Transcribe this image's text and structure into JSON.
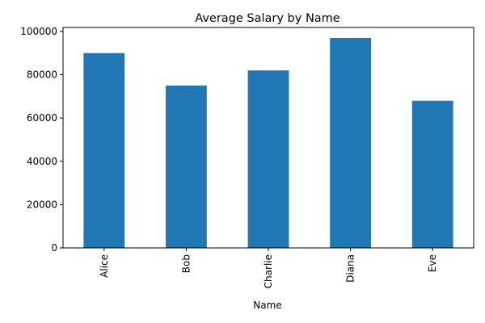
{
  "chart_data": {
    "type": "bar",
    "title": "Average Salary by Name",
    "xlabel": "Name",
    "ylabel": "",
    "categories": [
      "Alice",
      "Bob",
      "Charlie",
      "Diana",
      "Eve"
    ],
    "values": [
      90000,
      75000,
      82000,
      97000,
      68000
    ],
    "ylim": [
      0,
      101850
    ],
    "yticks": [
      0,
      20000,
      40000,
      60000,
      80000,
      100000
    ],
    "bar_color": "#1f77b4",
    "grid": false,
    "legend": "none",
    "x_tick_rotation": "vertical"
  }
}
